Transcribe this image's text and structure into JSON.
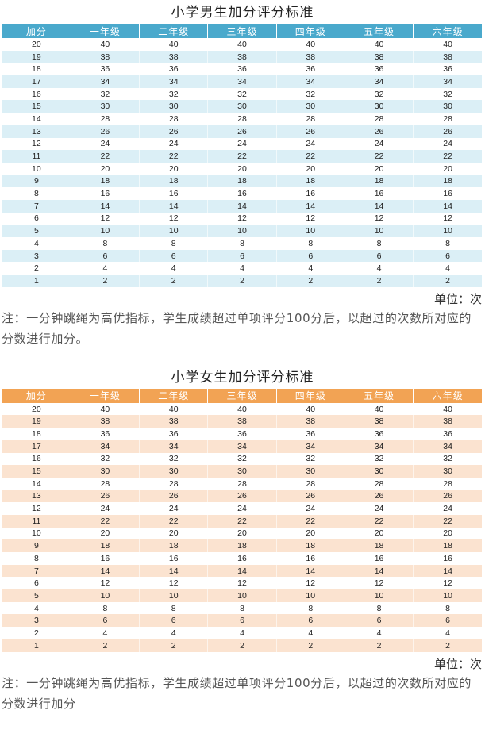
{
  "boys": {
    "title": "小学男生加分评分标准",
    "header_color": "#4aa9cc",
    "row_colors": [
      "#ffffff",
      "#dbeff6"
    ],
    "headers": [
      "加分",
      "一年级",
      "二年级",
      "三年级",
      "四年级",
      "五年级",
      "六年级"
    ],
    "rows": [
      [
        "20",
        "40",
        "40",
        "40",
        "40",
        "40",
        "40"
      ],
      [
        "19",
        "38",
        "38",
        "38",
        "38",
        "38",
        "38"
      ],
      [
        "18",
        "36",
        "36",
        "36",
        "36",
        "36",
        "36"
      ],
      [
        "17",
        "34",
        "34",
        "34",
        "34",
        "34",
        "34"
      ],
      [
        "16",
        "32",
        "32",
        "32",
        "32",
        "32",
        "32"
      ],
      [
        "15",
        "30",
        "30",
        "30",
        "30",
        "30",
        "30"
      ],
      [
        "14",
        "28",
        "28",
        "28",
        "28",
        "28",
        "28"
      ],
      [
        "13",
        "26",
        "26",
        "26",
        "26",
        "26",
        "26"
      ],
      [
        "12",
        "24",
        "24",
        "24",
        "24",
        "24",
        "24"
      ],
      [
        "11",
        "22",
        "22",
        "22",
        "22",
        "22",
        "22"
      ],
      [
        "10",
        "20",
        "20",
        "20",
        "20",
        "20",
        "20"
      ],
      [
        "9",
        "18",
        "18",
        "18",
        "18",
        "18",
        "18"
      ],
      [
        "8",
        "16",
        "16",
        "16",
        "16",
        "16",
        "16"
      ],
      [
        "7",
        "14",
        "14",
        "14",
        "14",
        "14",
        "14"
      ],
      [
        "6",
        "12",
        "12",
        "12",
        "12",
        "12",
        "12"
      ],
      [
        "5",
        "10",
        "10",
        "10",
        "10",
        "10",
        "10"
      ],
      [
        "4",
        "8",
        "8",
        "8",
        "8",
        "8",
        "8"
      ],
      [
        "3",
        "6",
        "6",
        "6",
        "6",
        "6",
        "6"
      ],
      [
        "2",
        "4",
        "4",
        "4",
        "4",
        "4",
        "4"
      ],
      [
        "1",
        "2",
        "2",
        "2",
        "2",
        "2",
        "2"
      ]
    ],
    "unit": "单位：次",
    "note": "注：一分钟跳绳为高优指标，学生成绩超过单项评分100分后，以超过的次数所对应的分数进行加分。"
  },
  "girls": {
    "title": "小学女生加分评分标准",
    "header_color": "#f2a354",
    "row_colors": [
      "#ffffff",
      "#fbe3d0"
    ],
    "headers": [
      "加分",
      "一年级",
      "二年级",
      "三年级",
      "四年级",
      "五年级",
      "六年级"
    ],
    "rows": [
      [
        "20",
        "40",
        "40",
        "40",
        "40",
        "40",
        "40"
      ],
      [
        "19",
        "38",
        "38",
        "38",
        "38",
        "38",
        "38"
      ],
      [
        "18",
        "36",
        "36",
        "36",
        "36",
        "36",
        "36"
      ],
      [
        "17",
        "34",
        "34",
        "34",
        "34",
        "34",
        "34"
      ],
      [
        "16",
        "32",
        "32",
        "32",
        "32",
        "32",
        "32"
      ],
      [
        "15",
        "30",
        "30",
        "30",
        "30",
        "30",
        "30"
      ],
      [
        "14",
        "28",
        "28",
        "28",
        "28",
        "28",
        "28"
      ],
      [
        "13",
        "26",
        "26",
        "26",
        "26",
        "26",
        "26"
      ],
      [
        "12",
        "24",
        "24",
        "24",
        "24",
        "24",
        "24"
      ],
      [
        "11",
        "22",
        "22",
        "22",
        "22",
        "22",
        "22"
      ],
      [
        "10",
        "20",
        "20",
        "20",
        "20",
        "20",
        "20"
      ],
      [
        "9",
        "18",
        "18",
        "18",
        "18",
        "18",
        "18"
      ],
      [
        "8",
        "16",
        "16",
        "16",
        "16",
        "16",
        "16"
      ],
      [
        "7",
        "14",
        "14",
        "14",
        "14",
        "14",
        "14"
      ],
      [
        "6",
        "12",
        "12",
        "12",
        "12",
        "12",
        "12"
      ],
      [
        "5",
        "10",
        "10",
        "10",
        "10",
        "10",
        "10"
      ],
      [
        "4",
        "8",
        "8",
        "8",
        "8",
        "8",
        "8"
      ],
      [
        "3",
        "6",
        "6",
        "6",
        "6",
        "6",
        "6"
      ],
      [
        "2",
        "4",
        "4",
        "4",
        "4",
        "4",
        "4"
      ],
      [
        "1",
        "2",
        "2",
        "2",
        "2",
        "2",
        "2"
      ]
    ],
    "unit": "单位：次",
    "note": "注：一分钟跳绳为高优指标，学生成绩超过单项评分100分后，以超过的次数所对应的分数进行加分"
  }
}
